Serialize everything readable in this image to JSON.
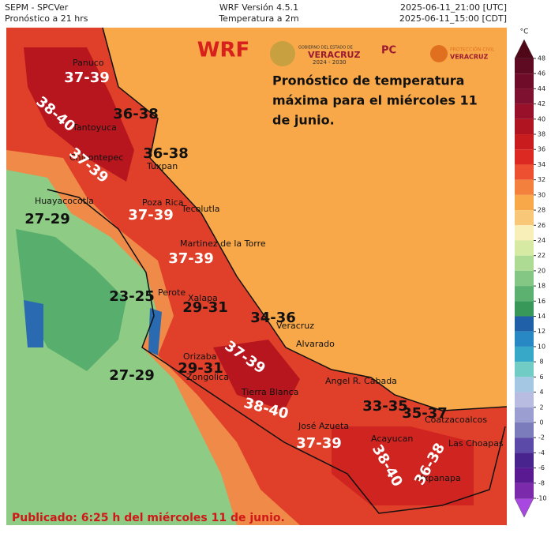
{
  "header": {
    "left": [
      "SEPM - SPCVer",
      "Pronóstico a 21 hrs"
    ],
    "center": [
      "WRF Versión 4.5.1",
      "Temperatura a 2m"
    ],
    "right": [
      "2025-06-11_21:00 [UTC]",
      "2025-06-11_15:00 [CDT]"
    ]
  },
  "map": {
    "model": "WRF",
    "logos": [
      "GOBIERNO DEL ESTADO DE",
      "VERACRUZ",
      "2024 - 2030",
      "PC",
      "PROTECCIÓN CIVIL",
      "VERACRUZ"
    ],
    "description": [
      "Pronóstico de temperatura",
      "máxima para el miércoles 11",
      "de junio."
    ],
    "range_labels": [
      "37-39",
      "38-40",
      "36-38",
      "37-39",
      "36-38",
      "27-29",
      "37-39",
      "37-39",
      "23-25",
      "29-31",
      "34-36",
      "37-39",
      "27-29",
      "29-31",
      "38-40",
      "33-35",
      "35-37",
      "37-39",
      "38-40",
      "36-38"
    ],
    "cities": [
      "Panuco",
      "Tantoyuca",
      "Chicontepec",
      "Tuxpan",
      "Huayacocotla",
      "Poza Rica",
      "Tecolutla",
      "Martinez de la Torre",
      "Perote",
      "Xalapa",
      "Veracruz",
      "Alvarado",
      "Orizaba",
      "Zongolica",
      "Tierra Blanca",
      "Angel R. Cabada",
      "José Azueta",
      "Acayucan",
      "Coatzacoalcos",
      "Las Choapas",
      "Uxpanapa"
    ],
    "footer": "Publicado: 6:25 h del miércoles 11 de junio."
  },
  "colorbar": {
    "unit": "°C",
    "ticks": [
      48,
      46,
      44,
      42,
      40,
      38,
      36,
      34,
      32,
      30,
      28,
      26,
      24,
      22,
      20,
      18,
      16,
      14,
      12,
      10,
      8,
      6,
      4,
      2,
      0,
      -2,
      -4,
      -6,
      -8,
      -10
    ],
    "colors": [
      "#5e0a22",
      "#6e0c2a",
      "#7e1030",
      "#98102a",
      "#b01420",
      "#c81c1e",
      "#dc2a22",
      "#ec5030",
      "#f4803e",
      "#f8a848",
      "#f8c878",
      "#f8eeb8",
      "#d6eaa4",
      "#aedb94",
      "#84c684",
      "#5cb070",
      "#38985a",
      "#2060a8",
      "#2888c4",
      "#38a8c8",
      "#70ccc4",
      "#a4c8e4",
      "#b8bce0",
      "#9a9ed0",
      "#7a7cbc",
      "#5c4aa8",
      "#48248e",
      "#5a1a92",
      "#7a2aaa"
    ],
    "over_color": "#500818",
    "under_color": "#a848e0"
  }
}
